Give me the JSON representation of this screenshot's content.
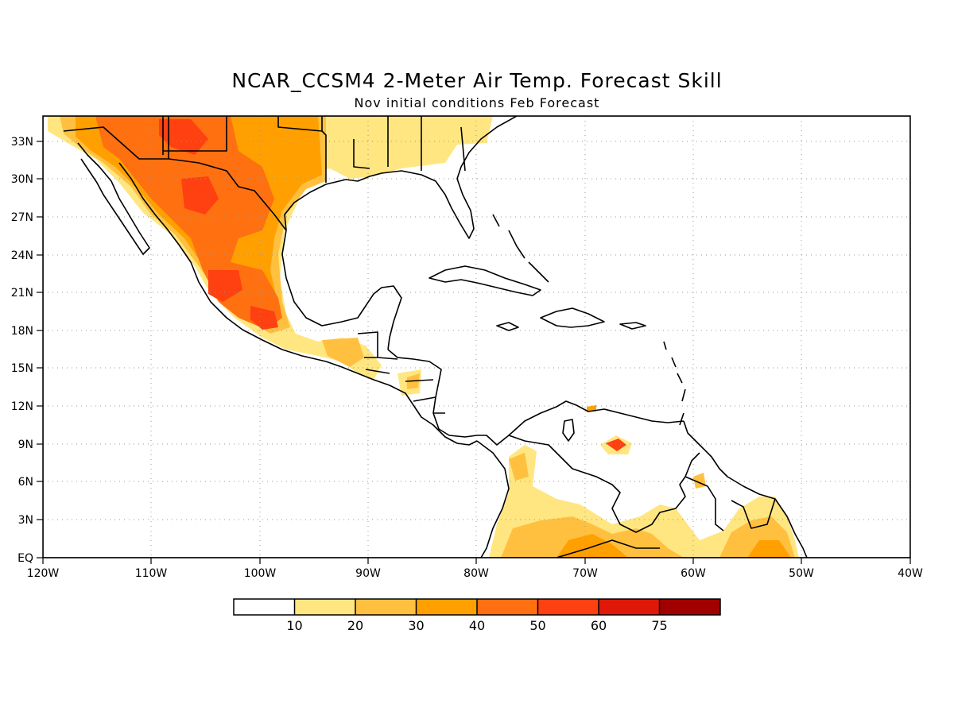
{
  "title": "NCAR_CCSM4 2-Meter Air Temp. Forecast Skill",
  "subtitle": "Nov initial conditions  Feb Forecast",
  "axes": {
    "lon_ticks": [
      "120W",
      "110W",
      "100W",
      "90W",
      "80W",
      "70W",
      "60W",
      "50W",
      "40W"
    ],
    "lat_ticks": [
      "EQ",
      "3N",
      "6N",
      "9N",
      "12N",
      "15N",
      "18N",
      "21N",
      "24N",
      "27N",
      "30N",
      "33N"
    ],
    "lon_range": [
      -120,
      -40
    ],
    "lat_range": [
      0,
      35
    ],
    "grid": "dotted"
  },
  "colorbar": {
    "labels": [
      "10",
      "20",
      "30",
      "40",
      "50",
      "60",
      "75"
    ],
    "colors": [
      "#ffffff",
      "#ffe680",
      "#ffc040",
      "#ffa000",
      "#ff7010",
      "#ff4010",
      "#e01808",
      "#a00000"
    ]
  },
  "skill_regions": [
    {
      "level": 1,
      "color": "#ffe680"
    },
    {
      "level": 2,
      "color": "#ffc040"
    },
    {
      "level": 3,
      "color": "#ffa000"
    },
    {
      "level": 4,
      "color": "#ff7010"
    },
    {
      "level": 5,
      "color": "#ff4010"
    }
  ]
}
